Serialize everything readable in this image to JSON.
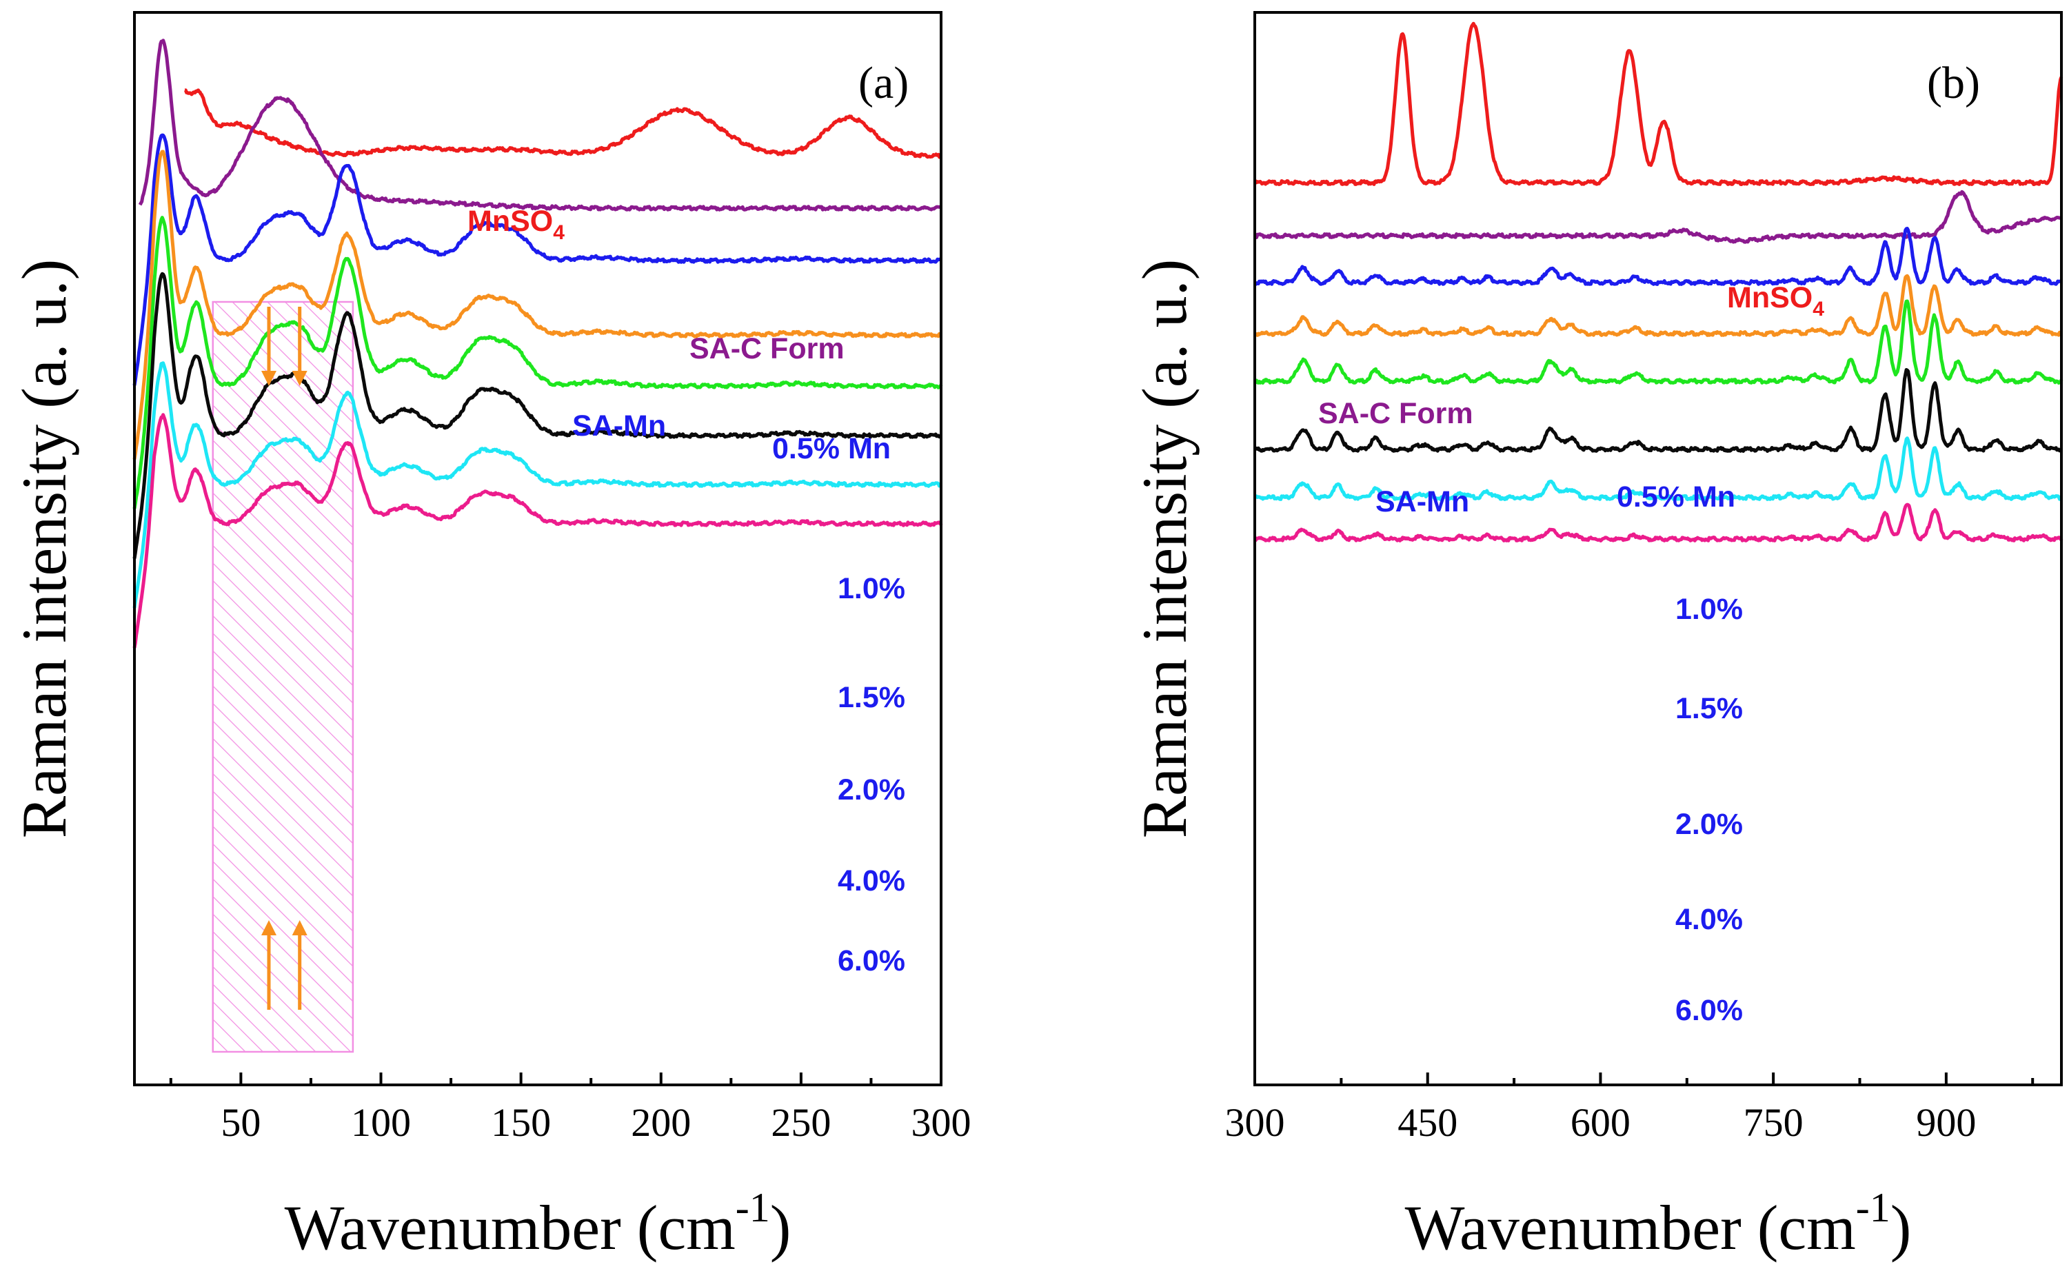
{
  "chart_data": [
    {
      "type": "line",
      "panel_label": "(a)",
      "xlabel_main": "Wavenumber (cm",
      "xlabel_sup": "-1",
      "xlabel_close": ")",
      "ylabel": "Raman intensity (a. u.)",
      "xlim": [
        12,
        300
      ],
      "xticks": [
        50,
        100,
        150,
        200,
        250,
        300
      ],
      "y_ticks_shown": false,
      "highlight_region": {
        "x_range": [
          40,
          90
        ],
        "style": "hatched pink box with orange arrows"
      },
      "arrows": [
        {
          "x": 60,
          "direction": "down",
          "series": "0.5% Mn"
        },
        {
          "x": 71,
          "direction": "down",
          "series": "0.5% Mn"
        },
        {
          "x": 60,
          "direction": "up",
          "series": "6.0%"
        },
        {
          "x": 71,
          "direction": "up",
          "series": "6.0%"
        }
      ],
      "series": [
        {
          "name": "MnSO4",
          "label": "MnSO",
          "label_sub": "4",
          "color": "#ee1c1c",
          "offset": 226,
          "peaks": [
            [
              47,
              0.42,
              8
            ],
            [
              62,
              0.18,
              10
            ],
            [
              110,
              0.12,
              12
            ],
            [
              145,
              0.1,
              15
            ],
            [
              207,
              0.72,
              14
            ],
            [
              267,
              0.6,
              9
            ],
            [
              35,
              0.55,
              3
            ]
          ],
          "x_start": 30,
          "start_level": 0.85,
          "start_decay": 5
        },
        {
          "name": "SA-C Form",
          "label": "SA-C Form",
          "color": "#8b1a8e",
          "offset": 302,
          "peaks": [
            [
              64,
              1.68,
              12
            ],
            [
              30,
              0.35,
              4
            ],
            [
              100,
              0.12,
              28
            ]
          ],
          "sharp_lead": [
            22,
            2.6,
            3
          ],
          "x_start": 14
        },
        {
          "name": "0.5% Mn",
          "label": "SA-Mn",
          "label2": "0.5% Mn",
          "color": "#1c1cee",
          "offset": 378,
          "scale": 1.0
        },
        {
          "name": "1.0%",
          "label": "1.0%",
          "color": "#f7901e",
          "offset": 486,
          "scale": 1.05,
          "lead": 2.9
        },
        {
          "name": "1.5%",
          "label": "1.5%",
          "color": "#1ee61e",
          "offset": 560,
          "scale": 1.32
        },
        {
          "name": "2.0%",
          "label": "2.0%",
          "color": "#0a0a0a",
          "offset": 632,
          "scale": 1.27
        },
        {
          "name": "4.0%",
          "label": "4.0%",
          "color": "#1ee6f5",
          "offset": 703,
          "scale": 0.95
        },
        {
          "name": "6.0%",
          "label": "6.0%",
          "color": "#ec1c8c",
          "offset": 760,
          "scale": 0.85
        }
      ],
      "common_peaks": [
        [
          22,
          0.0,
          3
        ],
        [
          34,
          1.0,
          3.2
        ],
        [
          60,
          0.55,
          5.5
        ],
        [
          71,
          0.65,
          5.5
        ],
        [
          88,
          1.5,
          4.5
        ],
        [
          109,
          0.32,
          7
        ],
        [
          135,
          0.5,
          6
        ],
        [
          147,
          0.42,
          6
        ],
        [
          178,
          0.05,
          8
        ],
        [
          248,
          0.03,
          8
        ]
      ]
    },
    {
      "type": "line",
      "panel_label": "(b)",
      "xlabel_main": "Wavenumber (cm",
      "xlabel_sup": "-1",
      "xlabel_close": ")",
      "ylabel": "Raman intensity (a. u.)",
      "xlim": [
        300,
        1000
      ],
      "xticks": [
        300,
        450,
        600,
        750,
        900
      ],
      "y_ticks_shown": false,
      "series": [
        {
          "name": "MnSO4",
          "label": "MnSO",
          "label_sub": "4",
          "color": "#ee1c1c",
          "offset": 265,
          "peaks": [
            [
              428,
              2.15,
              6
            ],
            [
              490,
              2.3,
              9
            ],
            [
              625,
              1.9,
              8
            ],
            [
              655,
              0.9,
              6
            ],
            [
              850,
              0.06,
              20
            ],
            [
              1000,
              1.55,
              4
            ]
          ]
        },
        {
          "name": "SA-C Form",
          "label": "SA-C Form",
          "color": "#8b1a8e",
          "offset": 342,
          "peaks": [
            [
              670,
              0.08,
              9
            ],
            [
              912,
              0.62,
              9
            ],
            [
              990,
              0.25,
              30
            ],
            [
              720,
              -0.07,
              20
            ]
          ]
        },
        {
          "name": "0.5% Mn",
          "label": "SA-Mn",
          "label2": "0.5% Mn",
          "color": "#1c1cee",
          "offset": 410,
          "scale": 0.95
        },
        {
          "name": "1.0%",
          "label": "1.0%",
          "color": "#f7901e",
          "offset": 484,
          "scale": 1.0
        },
        {
          "name": "1.5%",
          "label": "1.5%",
          "color": "#1ee61e",
          "offset": 553,
          "scale": 1.35
        },
        {
          "name": "2.0%",
          "label": "2.0%",
          "color": "#0a0a0a",
          "offset": 652,
          "scale": 1.35
        },
        {
          "name": "4.0%",
          "label": "4.0%",
          "color": "#1ee6f5",
          "offset": 722,
          "scale": 1.0
        },
        {
          "name": "6.0%",
          "label": "6.0%",
          "color": "#ec1c8c",
          "offset": 782,
          "scale": 0.6
        }
      ],
      "common_peaks": [
        [
          342,
          0.22,
          5
        ],
        [
          372,
          0.18,
          4
        ],
        [
          405,
          0.12,
          4
        ],
        [
          445,
          0.05,
          5
        ],
        [
          480,
          0.06,
          4
        ],
        [
          502,
          0.08,
          4
        ],
        [
          557,
          0.22,
          5
        ],
        [
          574,
          0.12,
          5
        ],
        [
          630,
          0.08,
          5
        ],
        [
          765,
          0.04,
          5
        ],
        [
          787,
          0.06,
          5
        ],
        [
          817,
          0.22,
          4
        ],
        [
          847,
          0.6,
          4
        ],
        [
          866,
          0.85,
          4
        ],
        [
          890,
          0.7,
          4
        ],
        [
          910,
          0.2,
          4
        ],
        [
          943,
          0.1,
          4
        ],
        [
          980,
          0.08,
          5
        ]
      ]
    }
  ]
}
